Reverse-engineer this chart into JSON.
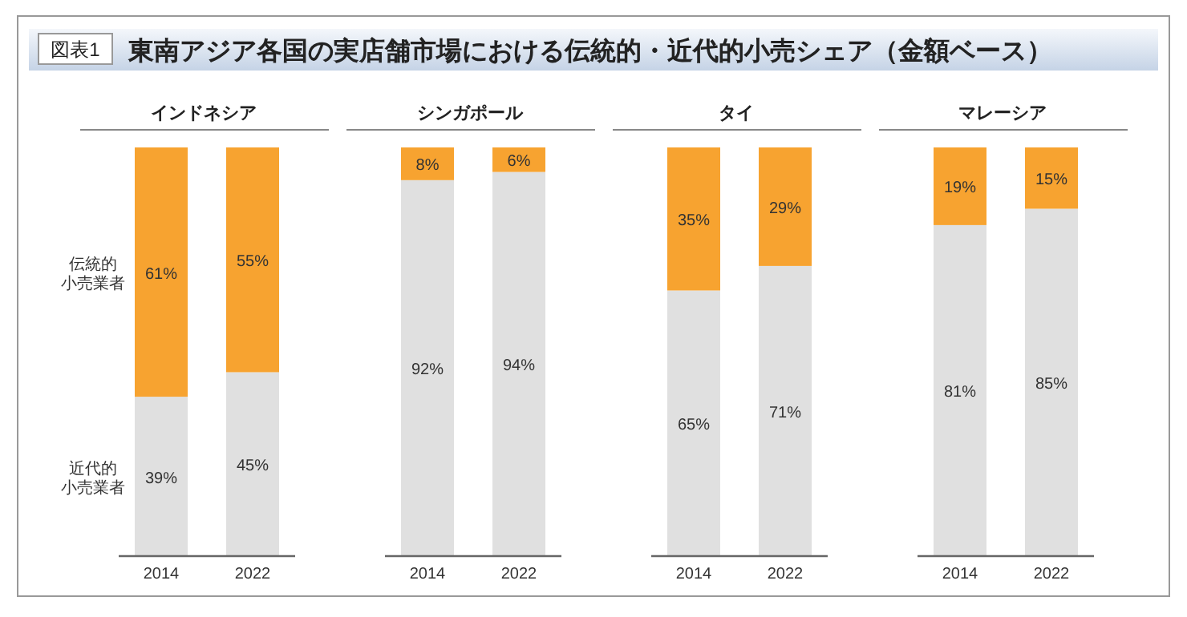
{
  "chart_data": [
    {
      "type": "bar",
      "stacked": true,
      "title": "インドネシア",
      "annotations": [
        "図表1",
        "東南アジア各国の実店舗市場における伝統的・近代的小売シェア（金額ベース）"
      ],
      "categories": [
        "2014",
        "2022"
      ],
      "series": [
        {
          "name": "近代的小売業者",
          "color": "#e0e0e0",
          "values": [
            39,
            45
          ],
          "value_labels": [
            "39%",
            "45%"
          ]
        },
        {
          "name": "伝統的小売業者",
          "color": "#f7a330",
          "values": [
            61,
            55
          ],
          "value_labels": [
            "61%",
            "55%"
          ]
        }
      ]
    },
    {
      "type": "bar",
      "stacked": true,
      "title": "シンガポール",
      "categories": [
        "2014",
        "2022"
      ],
      "series": [
        {
          "color": "#e0e0e0",
          "values": [
            92,
            94
          ],
          "value_labels": [
            "92%",
            "94%"
          ]
        },
        {
          "color": "#f7a330",
          "values": [
            8,
            6
          ],
          "value_labels": [
            "8%",
            "6%"
          ]
        }
      ]
    },
    {
      "type": "bar",
      "stacked": true,
      "title": "タイ",
      "categories": [
        "2014",
        "2022"
      ],
      "series": [
        {
          "color": "#e0e0e0",
          "values": [
            65,
            71
          ],
          "value_labels": [
            "65%",
            "71%"
          ]
        },
        {
          "color": "#f7a330",
          "values": [
            35,
            29
          ],
          "value_labels": [
            "35%",
            "29%"
          ]
        }
      ]
    },
    {
      "type": "bar",
      "stacked": true,
      "title": "マレーシア",
      "categories": [
        "2014",
        "2022"
      ],
      "series": [
        {
          "color": "#e0e0e0",
          "values": [
            81,
            85
          ],
          "value_labels": [
            "81%",
            "85%"
          ]
        },
        {
          "color": "#f7a330",
          "values": [
            19,
            15
          ],
          "value_labels": [
            "19%",
            "15%"
          ]
        }
      ]
    }
  ]
}
